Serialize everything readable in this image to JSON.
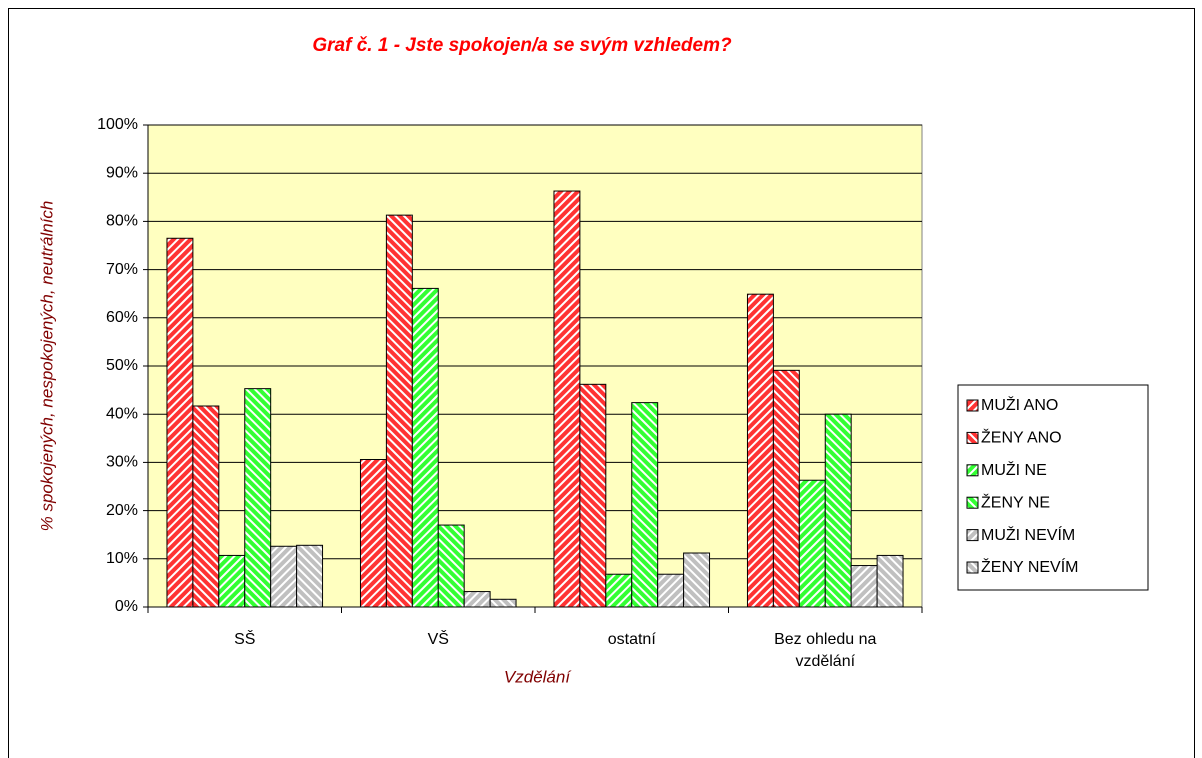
{
  "chart_data": {
    "type": "bar",
    "title": "Graf č. 1 - Jste spokojen/a se svým vzhledem?",
    "x_label": "Vzdělání",
    "y_label": "% spokojených, nespokojených, neutrálních",
    "categories": [
      "SŠ",
      "VŠ",
      "ostatní",
      "Bez ohledu na vzdělání"
    ],
    "series": [
      {
        "name": "MUŽI ANO",
        "color": "#ff3333",
        "values": [
          76.5,
          30.6,
          86.3,
          64.9
        ]
      },
      {
        "name": "ŽENY ANO",
        "color": "#ff3333",
        "values": [
          41.7,
          81.3,
          46.2,
          49.1
        ]
      },
      {
        "name": "MUŽI NE",
        "color": "#33ff33",
        "values": [
          10.7,
          66.1,
          6.8,
          26.3
        ]
      },
      {
        "name": "ŽENY NE",
        "color": "#33ff33",
        "values": [
          45.3,
          17.0,
          42.4,
          40.0
        ]
      },
      {
        "name": "MUŽI NEVÍM",
        "color": "#c0c0c0",
        "values": [
          12.6,
          3.2,
          6.8,
          8.6
        ]
      },
      {
        "name": "ŽENY NEVÍM",
        "color": "#c0c0c0",
        "values": [
          12.8,
          1.6,
          11.2,
          10.7
        ]
      }
    ],
    "ylim": [
      0,
      100
    ],
    "yticks": [
      {
        "value": 0,
        "label": "0%"
      },
      {
        "value": 10,
        "label": "10%"
      },
      {
        "value": 20,
        "label": "20%"
      },
      {
        "value": 30,
        "label": "30%"
      },
      {
        "value": 40,
        "label": "40%"
      },
      {
        "value": 50,
        "label": "50%"
      },
      {
        "value": 60,
        "label": "60%"
      },
      {
        "value": 70,
        "label": "70%"
      },
      {
        "value": 80,
        "label": "80%"
      },
      {
        "value": 90,
        "label": "90%"
      },
      {
        "value": 100,
        "label": "100%"
      }
    ],
    "grid": true,
    "legend": "right",
    "plot_background": "#ffffc0"
  }
}
